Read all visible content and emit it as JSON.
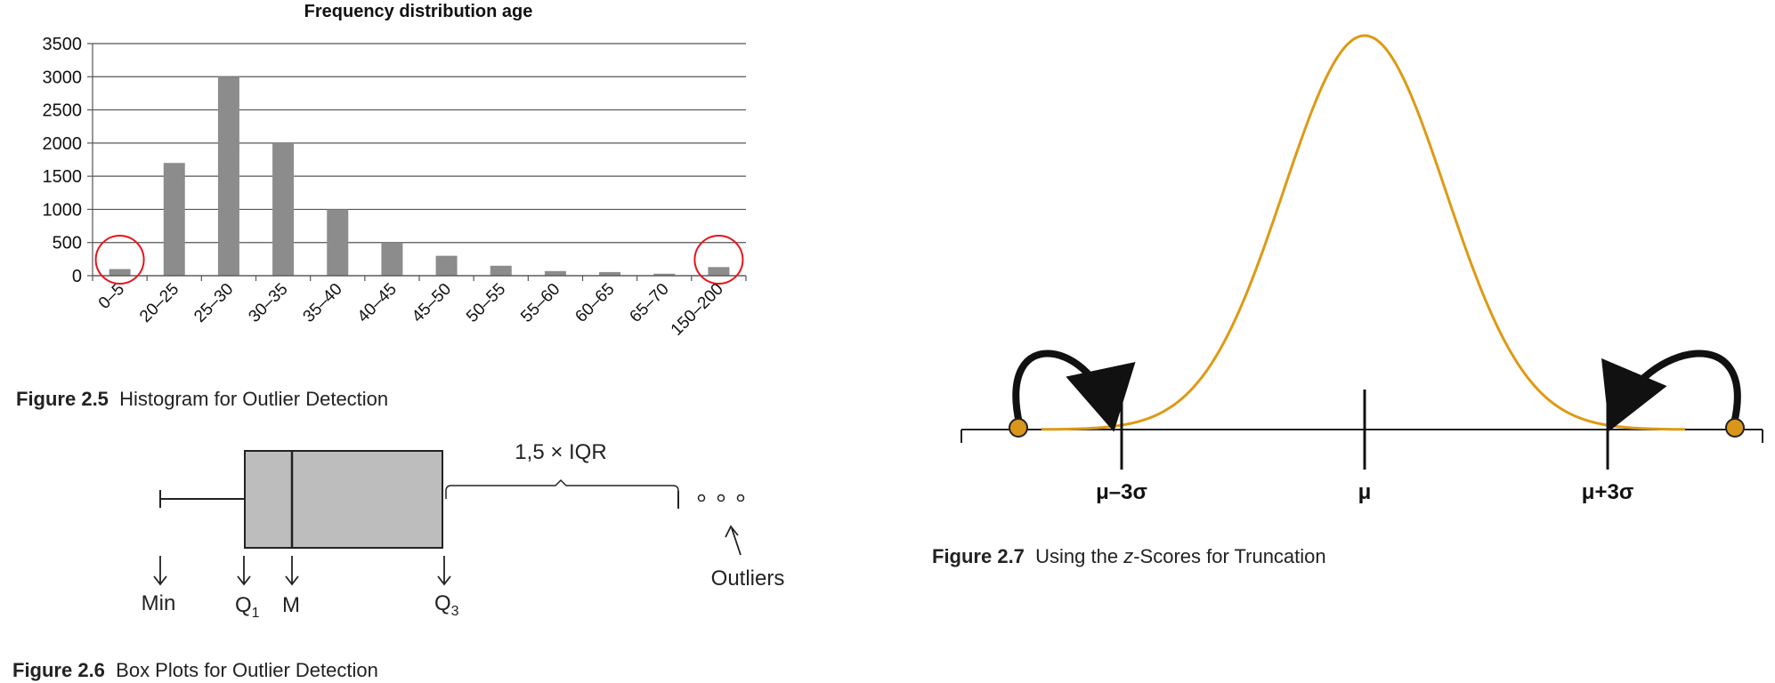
{
  "chart_data": [
    {
      "type": "bar",
      "title": "Frequency distribution age",
      "categories": [
        "0–5",
        "20–25",
        "25–30",
        "30–35",
        "35–40",
        "40–45",
        "45–50",
        "50–55",
        "55–60",
        "60–65",
        "65–70",
        "150–200"
      ],
      "values": [
        100,
        1700,
        3000,
        2000,
        1000,
        500,
        300,
        150,
        70,
        55,
        30,
        130
      ],
      "ylim": [
        0,
        3500
      ],
      "yticks": [
        0,
        500,
        1000,
        1500,
        2000,
        2500,
        3000,
        3500
      ],
      "grid": true,
      "highlighted_categories": [
        "0–5",
        "150–200"
      ],
      "bar_color": "#8c8c8c",
      "highlight_color": "#e8141b"
    }
  ],
  "figures": {
    "fig25": {
      "label": "Figure 2.5",
      "text": "Histogram for Outlier Detection"
    },
    "fig26": {
      "label": "Figure 2.6",
      "text": "Box Plots for Outlier Detection"
    },
    "fig27": {
      "label": "Figure 2.7",
      "text_before": "Using the ",
      "text_italic": "z",
      "text_after": "-Scores for Truncation"
    }
  },
  "boxplot": {
    "iqr_label": "1,5 × IQR",
    "min_label": "Min",
    "q1_label": "Q",
    "q1_sub": "1",
    "m_label": "M",
    "q3_label": "Q",
    "q3_sub": "3",
    "outliers_label": "Outliers",
    "box_color": "#bdbdbd"
  },
  "normal": {
    "left_label": "μ–3σ",
    "center_label": "μ",
    "right_label": "μ+3σ",
    "curve_color": "#dd9a14",
    "point_color": "#d9961a"
  }
}
